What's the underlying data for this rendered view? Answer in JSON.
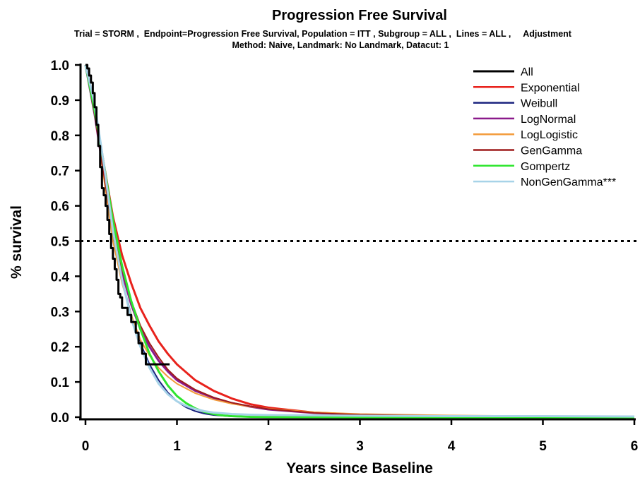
{
  "chart_data": {
    "type": "line",
    "title": "Progression Free Survival",
    "subtitle_lines": [
      "Trial = STORM ,  Endpoint=Progression Free Survival, Population = ITT , Subgroup = ALL ,  Lines = ALL ,     Adjustment",
      "Method:  Naive, Landmark: No Landmark, Datacut: 1"
    ],
    "xlabel": "Years since Baseline",
    "ylabel": "% survival",
    "xlim": [
      0,
      6
    ],
    "ylim": [
      0,
      1
    ],
    "x_ticks": [
      0,
      1,
      2,
      3,
      4,
      5,
      6
    ],
    "x_tick_labels": [
      "0",
      "1",
      "2",
      "3",
      "4",
      "5",
      "6"
    ],
    "y_ticks": [
      0,
      0.1,
      0.2,
      0.3,
      0.4,
      0.5,
      0.6,
      0.7,
      0.8,
      0.9,
      1.0
    ],
    "y_tick_labels": [
      "0.0",
      "0.1",
      "0.2",
      "0.3",
      "0.4",
      "0.5",
      "0.6",
      "0.7",
      "0.8",
      "0.9",
      "1.0"
    ],
    "reference_line": {
      "y": 0.5,
      "style": "dotted",
      "color": "#000000"
    },
    "grid": false,
    "legend_position": "top-right",
    "series": [
      {
        "name": "All",
        "color": "#000000",
        "kind": "step",
        "width": 3,
        "x": [
          0,
          0.02,
          0.04,
          0.06,
          0.08,
          0.1,
          0.12,
          0.14,
          0.16,
          0.18,
          0.2,
          0.22,
          0.24,
          0.26,
          0.28,
          0.3,
          0.32,
          0.34,
          0.36,
          0.38,
          0.4,
          0.43,
          0.46,
          0.5,
          0.55,
          0.58,
          0.62,
          0.66,
          0.7,
          0.92
        ],
        "y": [
          1.0,
          0.99,
          0.97,
          0.95,
          0.92,
          0.88,
          0.83,
          0.77,
          0.71,
          0.65,
          0.63,
          0.6,
          0.56,
          0.52,
          0.48,
          0.45,
          0.42,
          0.39,
          0.35,
          0.34,
          0.31,
          0.31,
          0.29,
          0.27,
          0.24,
          0.21,
          0.18,
          0.15,
          0.15,
          0.15
        ]
      },
      {
        "name": "Exponential",
        "color": "#e8221c",
        "kind": "line",
        "width": 3,
        "x": [
          0,
          0.1,
          0.2,
          0.3,
          0.4,
          0.5,
          0.6,
          0.7,
          0.8,
          0.9,
          1.0,
          1.2,
          1.4,
          1.6,
          1.8,
          2.0,
          2.5,
          3.0,
          4.0,
          5.0,
          6.0
        ],
        "y": [
          1.0,
          0.88,
          0.72,
          0.57,
          0.46,
          0.38,
          0.31,
          0.26,
          0.215,
          0.18,
          0.15,
          0.105,
          0.075,
          0.053,
          0.037,
          0.027,
          0.013,
          0.007,
          0.003,
          0.002,
          0.001
        ]
      },
      {
        "name": "Weibull",
        "color": "#1a237e",
        "kind": "line",
        "width": 2,
        "x": [
          0,
          0.1,
          0.2,
          0.3,
          0.4,
          0.5,
          0.6,
          0.7,
          0.8,
          0.9,
          1.0,
          1.1,
          1.2,
          1.3,
          1.4,
          1.6,
          1.8,
          2.0,
          3.0,
          6.0
        ],
        "y": [
          1.0,
          0.88,
          0.7,
          0.52,
          0.39,
          0.29,
          0.21,
          0.15,
          0.105,
          0.07,
          0.045,
          0.028,
          0.017,
          0.01,
          0.006,
          0.002,
          0.001,
          0.0005,
          0,
          0
        ]
      },
      {
        "name": "LogNormal",
        "color": "#8b1a8b",
        "kind": "line",
        "width": 3,
        "x": [
          0,
          0.1,
          0.2,
          0.3,
          0.4,
          0.5,
          0.6,
          0.7,
          0.8,
          0.9,
          1.0,
          1.2,
          1.4,
          1.6,
          1.8,
          2.0,
          2.5,
          3.0,
          4.0,
          5.0,
          6.0
        ],
        "y": [
          1.0,
          0.86,
          0.69,
          0.53,
          0.41,
          0.32,
          0.25,
          0.2,
          0.16,
          0.13,
          0.105,
          0.075,
          0.055,
          0.04,
          0.03,
          0.022,
          0.012,
          0.007,
          0.003,
          0.0015,
          0.001
        ]
      },
      {
        "name": "LogLogistic",
        "color": "#f39c3c",
        "kind": "line",
        "width": 2,
        "x": [
          0,
          0.1,
          0.2,
          0.3,
          0.4,
          0.5,
          0.6,
          0.7,
          0.8,
          0.9,
          1.0,
          1.2,
          1.4,
          1.6,
          1.8,
          2.0,
          2.5,
          3.0,
          4.0,
          5.0,
          6.0
        ],
        "y": [
          1.0,
          0.87,
          0.68,
          0.5,
          0.38,
          0.29,
          0.22,
          0.175,
          0.14,
          0.115,
          0.095,
          0.068,
          0.05,
          0.038,
          0.03,
          0.024,
          0.014,
          0.009,
          0.005,
          0.003,
          0.002
        ]
      },
      {
        "name": "GenGamma",
        "color": "#9e1b1b",
        "kind": "line",
        "width": 2,
        "x": [
          0,
          0.1,
          0.2,
          0.3,
          0.4,
          0.5,
          0.6,
          0.7,
          0.8,
          0.9,
          1.0,
          1.2,
          1.4,
          1.6,
          1.8,
          2.0,
          2.5,
          3.0,
          4.0,
          5.0,
          6.0
        ],
        "y": [
          1.0,
          0.86,
          0.69,
          0.53,
          0.42,
          0.33,
          0.26,
          0.21,
          0.17,
          0.135,
          0.11,
          0.078,
          0.056,
          0.041,
          0.031,
          0.023,
          0.012,
          0.007,
          0.003,
          0.0015,
          0.001
        ]
      },
      {
        "name": "Gompertz",
        "color": "#2ee52e",
        "kind": "line",
        "width": 3,
        "x": [
          0,
          0.1,
          0.2,
          0.3,
          0.4,
          0.5,
          0.6,
          0.7,
          0.8,
          0.9,
          1.0,
          1.1,
          1.2,
          1.3,
          1.4,
          1.5,
          1.6,
          1.8,
          2.0,
          3.0,
          6.0
        ],
        "y": [
          1.0,
          0.87,
          0.72,
          0.56,
          0.43,
          0.33,
          0.25,
          0.18,
          0.13,
          0.09,
          0.06,
          0.04,
          0.025,
          0.015,
          0.009,
          0.005,
          0.003,
          0.001,
          0.0005,
          0,
          0
        ]
      },
      {
        "name": "NonGenGamma***",
        "color": "#a7d3e8",
        "kind": "line",
        "width": 3,
        "x": [
          0,
          0.1,
          0.2,
          0.3,
          0.4,
          0.5,
          0.6,
          0.7,
          0.8,
          0.9,
          1.0,
          1.1,
          1.2,
          1.3,
          1.4,
          1.6,
          1.8,
          2.0,
          2.5,
          3.0,
          4.0,
          5.0,
          6.0
        ],
        "y": [
          1.0,
          0.89,
          0.72,
          0.53,
          0.39,
          0.28,
          0.2,
          0.14,
          0.095,
          0.065,
          0.045,
          0.032,
          0.023,
          0.017,
          0.013,
          0.009,
          0.007,
          0.006,
          0.005,
          0.004,
          0.003,
          0.003,
          0.002
        ]
      }
    ]
  }
}
